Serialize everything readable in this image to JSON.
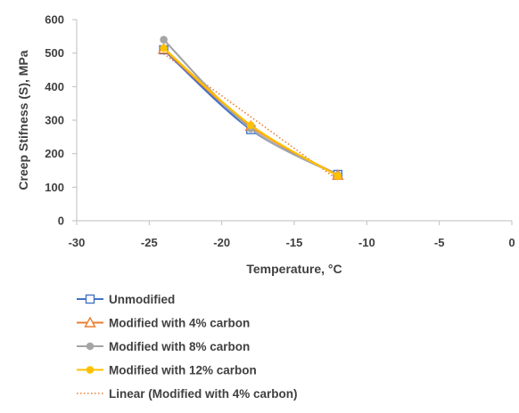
{
  "chart_data": {
    "type": "line",
    "xlabel": "Temperature, °C",
    "ylabel": "Creep Stifness (S), MPa",
    "xlim": [
      -30,
      0
    ],
    "ylim": [
      0,
      600
    ],
    "x_ticks": [
      "-30",
      "-25",
      "-20",
      "-15",
      "-10",
      "-5",
      "0"
    ],
    "y_ticks": [
      "0",
      "100",
      "200",
      "300",
      "400",
      "500",
      "600"
    ],
    "grid": "none",
    "legend_position": "bottom",
    "series": [
      {
        "name": "Unmodified",
        "x": [
          -24,
          -18,
          -12
        ],
        "y": [
          510,
          272,
          138
        ],
        "color": "#4472C4",
        "marker": "square"
      },
      {
        "name": "Modified with 4% carbon",
        "x": [
          -24,
          -18,
          -12
        ],
        "y": [
          512,
          282,
          136
        ],
        "color": "#ED7D31",
        "marker": "triangle"
      },
      {
        "name": "Modified with 8% carbon",
        "x": [
          -24,
          -18,
          -12
        ],
        "y": [
          540,
          275,
          136
        ],
        "color": "#A5A5A5",
        "marker": "circle"
      },
      {
        "name": "Modified with 12% carbon",
        "x": [
          -24,
          -18,
          -12
        ],
        "y": [
          515,
          285,
          134
        ],
        "color": "#FFC000",
        "marker": "circle"
      }
    ],
    "trendline": {
      "name": "Linear (Modified with 4% carbon)",
      "of_series": "Modified with 4% carbon",
      "type": "linear",
      "color": "#ED7D31",
      "style": "dotted"
    }
  }
}
